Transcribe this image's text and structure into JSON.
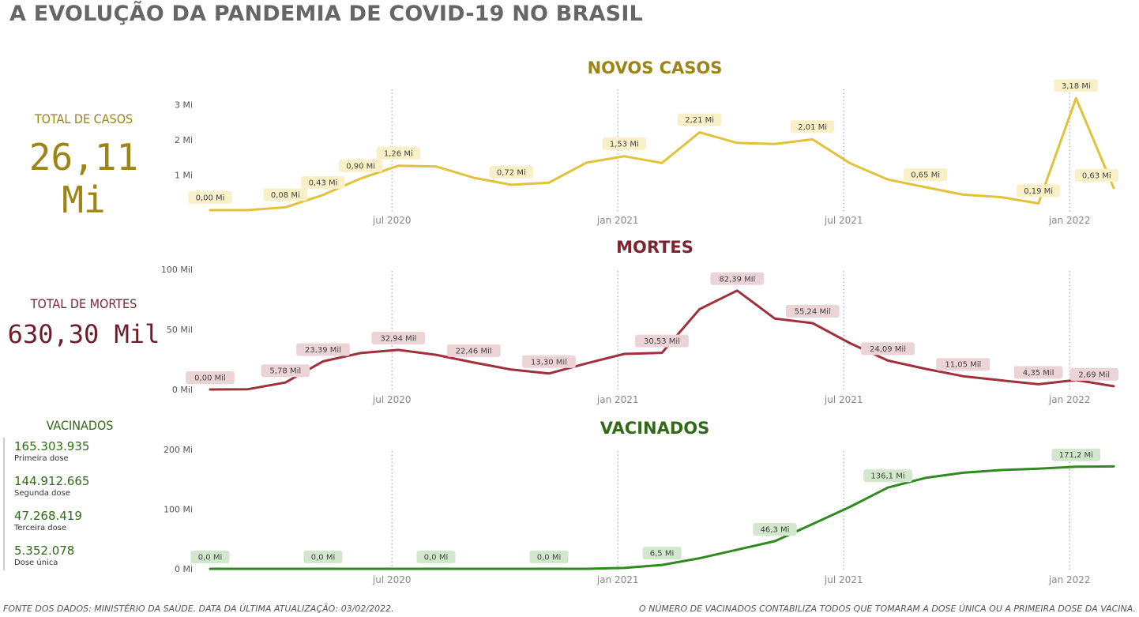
{
  "page": {
    "title": "A EVOLUÇÃO DA PANDEMIA DE COVID-19 NO BRASIL",
    "footer_left": "FONTE DOS DADOS: MINISTÉRIO DA SAÚDE. DATA DA ÚLTIMA ATUALIZAÇÃO: 03/02/2022.",
    "footer_right": "O NÚMERO DE VACINADOS CONTABILIZA TODOS QUE TOMARAM A DOSE ÚNICA OU A PRIMEIRA DOSE DA VACINA."
  },
  "kpis": {
    "cases": {
      "label": "TOTAL DE CASOS",
      "value": "26,11 Mi",
      "color": "#9c8416"
    },
    "deaths": {
      "label": "TOTAL DE MORTES",
      "value": "630,30 Mil",
      "color": "#6b1f2a"
    },
    "vaccinated": {
      "label": "VACINADOS",
      "items": [
        {
          "value": "165.303.935",
          "label": "Primeira dose"
        },
        {
          "value": "144.912.665",
          "label": "Segunda dose"
        },
        {
          "value": "47.268.419",
          "label": "Terceira dose"
        },
        {
          "value": "5.352.078",
          "label": "Dose única"
        }
      ]
    }
  },
  "chart_data": [
    {
      "type": "line",
      "title": "NOVOS CASOS",
      "color": "#e2c23b",
      "title_color": "#9c8416",
      "label_bg": "#faf0c8",
      "unit": "Mi",
      "x_ticks": [
        "jul 2020",
        "jan 2021",
        "jul 2021",
        "jan 2022"
      ],
      "y_ticks": [
        {
          "value": 1,
          "label": "1 Mi"
        },
        {
          "value": 2,
          "label": "2 Mi"
        },
        {
          "value": 3,
          "label": "3 Mi"
        }
      ],
      "ylim": [
        0,
        3.5
      ],
      "x": [
        "2020-02",
        "2020-03",
        "2020-04",
        "2020-05",
        "2020-06",
        "2020-07",
        "2020-08",
        "2020-09",
        "2020-10",
        "2020-11",
        "2020-12",
        "2021-01",
        "2021-02",
        "2021-03",
        "2021-04",
        "2021-05",
        "2021-06",
        "2021-07",
        "2021-08",
        "2021-09",
        "2021-10",
        "2021-11",
        "2021-12",
        "2022-01",
        "2022-02"
      ],
      "values": [
        0.0,
        0.0,
        0.08,
        0.43,
        0.9,
        1.26,
        1.24,
        0.92,
        0.72,
        0.78,
        1.35,
        1.53,
        1.34,
        2.21,
        1.91,
        1.88,
        2.01,
        1.33,
        0.87,
        0.65,
        0.44,
        0.37,
        0.19,
        3.18,
        0.63
      ],
      "labels": [
        "0,00 Mi",
        "",
        "0,08 Mi",
        "0,43 Mi",
        "0,90 Mi",
        "1,26 Mi",
        "",
        "",
        "0,72 Mi",
        "",
        "",
        "1,53 Mi",
        "",
        "2,21 Mi",
        "",
        "",
        "2,01 Mi",
        "",
        "",
        "0,65 Mi",
        "",
        "",
        "0,19 Mi",
        "3,18 Mi",
        "0,63 Mi"
      ]
    },
    {
      "type": "line",
      "title": "MORTES",
      "color": "#a0303b",
      "title_color": "#7b2430",
      "label_bg": "#ecd3d6",
      "unit": "Mil",
      "x_ticks": [
        "jul 2020",
        "jan 2021",
        "jul 2021",
        "jan 2022"
      ],
      "y_ticks": [
        {
          "value": 0,
          "label": "0 Mil"
        },
        {
          "value": 50,
          "label": "50 Mil"
        },
        {
          "value": 100,
          "label": "100 Mil"
        }
      ],
      "ylim": [
        0,
        100
      ],
      "x": [
        "2020-02",
        "2020-03",
        "2020-04",
        "2020-05",
        "2020-06",
        "2020-07",
        "2020-08",
        "2020-09",
        "2020-10",
        "2020-11",
        "2020-12",
        "2021-01",
        "2021-02",
        "2021-03",
        "2021-04",
        "2021-05",
        "2021-06",
        "2021-07",
        "2021-08",
        "2021-09",
        "2021-10",
        "2021-11",
        "2021-12",
        "2022-01",
        "2022-02"
      ],
      "values": [
        0.0,
        0.2,
        5.78,
        23.39,
        30.3,
        32.94,
        28.9,
        22.46,
        16.6,
        13.3,
        21.8,
        29.6,
        30.53,
        66.9,
        82.39,
        59.0,
        55.24,
        38.5,
        24.09,
        17.2,
        11.05,
        7.6,
        4.35,
        7.9,
        2.69
      ],
      "labels": [
        "0,00 Mil",
        "",
        "5,78 Mil",
        "23,39 Mil",
        "",
        "32,94 Mil",
        "",
        "22,46 Mil",
        "",
        "13,30 Mil",
        "",
        "",
        "30,53 Mil",
        "",
        "82,39 Mil",
        "",
        "55,24 Mil",
        "",
        "24,09 Mil",
        "",
        "11,05 Mil",
        "",
        "4,35 Mil",
        "",
        "2,69 Mil"
      ]
    },
    {
      "type": "line",
      "title": "VACINADOS",
      "color": "#2f8a1f",
      "title_color": "#2e6b14",
      "label_bg": "#d2e8cc",
      "unit": "Mi",
      "x_ticks": [
        "jul 2020",
        "jan 2021",
        "jul 2021",
        "jan 2022"
      ],
      "y_ticks": [
        {
          "value": 0,
          "label": "0 Mi"
        },
        {
          "value": 100,
          "label": "100 Mi"
        },
        {
          "value": 200,
          "label": "200 Mi"
        }
      ],
      "ylim": [
        0,
        200
      ],
      "x": [
        "2020-02",
        "2020-03",
        "2020-04",
        "2020-05",
        "2020-06",
        "2020-07",
        "2020-08",
        "2020-09",
        "2020-10",
        "2020-11",
        "2020-12",
        "2021-01",
        "2021-02",
        "2021-03",
        "2021-04",
        "2021-05",
        "2021-06",
        "2021-07",
        "2021-08",
        "2021-09",
        "2021-10",
        "2021-11",
        "2021-12",
        "2022-01",
        "2022-02"
      ],
      "values": [
        0.0,
        0.0,
        0.0,
        0.0,
        0.0,
        0.0,
        0.0,
        0.0,
        0.0,
        0.0,
        0.0,
        1.5,
        6.5,
        17.7,
        32.0,
        46.3,
        75.0,
        104.0,
        136.1,
        152.5,
        161.0,
        165.5,
        168.0,
        171.2,
        171.7
      ],
      "labels": [
        "0,0 Mi",
        "",
        "",
        "0,0 Mi",
        "",
        "",
        "0,0 Mi",
        "",
        "",
        "0,0 Mi",
        "",
        "",
        "6,5 Mi",
        "",
        "",
        "46,3 Mi",
        "",
        "",
        "136,1 Mi",
        "",
        "",
        "",
        "",
        "171,2 Mi",
        ""
      ]
    }
  ]
}
